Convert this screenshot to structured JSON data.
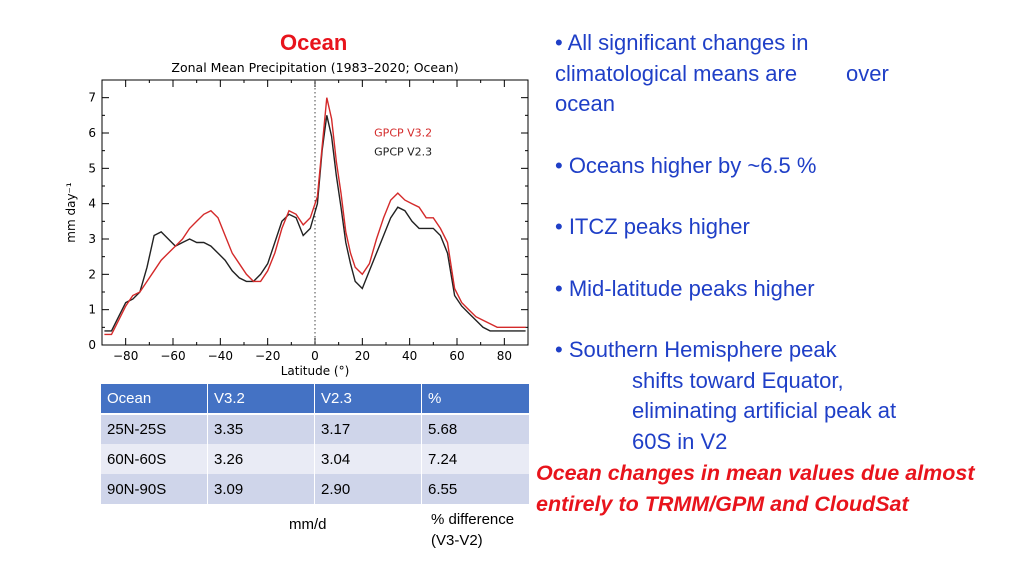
{
  "heading": "Ocean",
  "chart_data": {
    "type": "line",
    "title": "Zonal Mean Precipitation (1983–2020; Ocean)",
    "xlabel": "Latitude (°)",
    "ylabel": "mm day⁻¹",
    "xlim": [
      -90,
      90
    ],
    "ylim": [
      0,
      7.5
    ],
    "xticks": [
      -80,
      -60,
      -40,
      -20,
      0,
      20,
      40,
      60,
      80
    ],
    "yticks": [
      0,
      1,
      2,
      3,
      4,
      5,
      6,
      7
    ],
    "grid": false,
    "legend_position": "top-right",
    "reference_line": {
      "x": 0,
      "style": "dotted"
    },
    "series": [
      {
        "name": "GPCP V3.2",
        "color": "#d42a2a",
        "x": [
          -89,
          -86,
          -83,
          -80,
          -77,
          -74,
          -71,
          -68,
          -65,
          -62,
          -59,
          -56,
          -53,
          -50,
          -47,
          -44,
          -41,
          -38,
          -35,
          -32,
          -29,
          -26,
          -23,
          -20,
          -17,
          -14,
          -11,
          -8,
          -5,
          -2,
          1,
          3,
          5,
          7,
          9,
          11,
          13,
          15,
          17,
          20,
          23,
          26,
          29,
          32,
          35,
          38,
          41,
          44,
          47,
          50,
          53,
          56,
          59,
          62,
          65,
          68,
          71,
          74,
          77,
          80,
          83,
          86,
          89
        ],
        "values": [
          0.3,
          0.3,
          0.7,
          1.1,
          1.4,
          1.5,
          1.8,
          2.1,
          2.4,
          2.6,
          2.8,
          3.0,
          3.3,
          3.5,
          3.7,
          3.8,
          3.6,
          3.1,
          2.6,
          2.3,
          2.0,
          1.8,
          1.8,
          2.1,
          2.6,
          3.3,
          3.8,
          3.7,
          3.4,
          3.6,
          4.2,
          5.6,
          7.0,
          6.4,
          5.2,
          4.3,
          3.2,
          2.6,
          2.2,
          2.0,
          2.3,
          3.0,
          3.6,
          4.1,
          4.3,
          4.1,
          4.0,
          3.9,
          3.6,
          3.6,
          3.3,
          2.9,
          1.6,
          1.2,
          1.0,
          0.8,
          0.7,
          0.6,
          0.5,
          0.5,
          0.5,
          0.5,
          0.5
        ]
      },
      {
        "name": "GPCP V2.3",
        "color": "#222222",
        "x": [
          -89,
          -86,
          -83,
          -80,
          -77,
          -74,
          -71,
          -68,
          -65,
          -62,
          -59,
          -56,
          -53,
          -50,
          -47,
          -44,
          -41,
          -38,
          -35,
          -32,
          -29,
          -26,
          -23,
          -20,
          -17,
          -14,
          -11,
          -8,
          -5,
          -2,
          1,
          3,
          5,
          7,
          9,
          11,
          13,
          15,
          17,
          20,
          23,
          26,
          29,
          32,
          35,
          38,
          41,
          44,
          47,
          50,
          53,
          56,
          59,
          62,
          65,
          68,
          71,
          74,
          77,
          80,
          83,
          86,
          89
        ],
        "values": [
          0.4,
          0.4,
          0.8,
          1.2,
          1.3,
          1.5,
          2.2,
          3.1,
          3.2,
          3.0,
          2.8,
          2.9,
          3.0,
          2.9,
          2.9,
          2.8,
          2.6,
          2.4,
          2.1,
          1.9,
          1.8,
          1.8,
          2.0,
          2.3,
          2.9,
          3.5,
          3.7,
          3.6,
          3.1,
          3.3,
          4.0,
          5.5,
          6.5,
          5.9,
          4.8,
          3.9,
          2.9,
          2.3,
          1.8,
          1.6,
          2.1,
          2.6,
          3.1,
          3.6,
          3.9,
          3.8,
          3.5,
          3.3,
          3.3,
          3.3,
          3.1,
          2.6,
          1.4,
          1.1,
          0.9,
          0.7,
          0.5,
          0.4,
          0.4,
          0.4,
          0.4,
          0.4,
          0.4
        ]
      }
    ]
  },
  "table": {
    "headers": [
      "Ocean",
      "V3.2",
      "V2.3",
      "%"
    ],
    "rows": [
      [
        "25N-25S",
        "3.35",
        "3.17",
        "5.68"
      ],
      [
        "60N-60S",
        "3.26",
        "3.04",
        "7.24"
      ],
      [
        "90N-90S",
        "3.09",
        "2.90",
        "6.55"
      ]
    ]
  },
  "notes": {
    "units": "mm/d",
    "pct_line1": "% difference",
    "pct_line2": "(V3-V2)"
  },
  "bullets": {
    "b1_line1": "• All significant changes in",
    "b1_line2": "climatological means are        over",
    "b1_line3": "ocean",
    "b2": "• Oceans higher by ~6.5 %",
    "b3": "• ITCZ peaks higher",
    "b4": "• Mid-latitude peaks higher",
    "b5_line1": "• Southern Hemisphere peak",
    "b5_line2": "shifts toward Equator,",
    "b5_line3": "eliminating artificial peak at",
    "b5_line4": "60S in V2"
  },
  "conclusion": {
    "line1": "Ocean changes in mean values due almost",
    "line2": "entirely to TRMM/GPM and CloudSat"
  }
}
